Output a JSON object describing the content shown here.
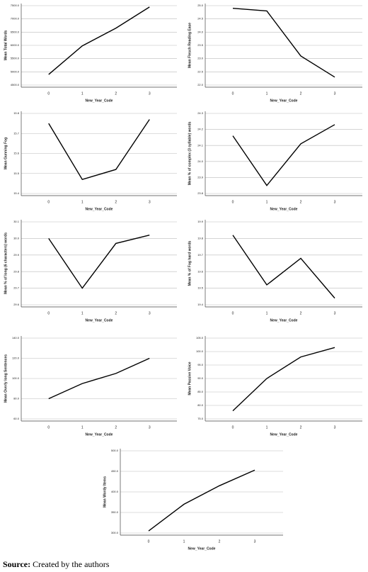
{
  "chart_data": [
    {
      "type": "line",
      "y_label": "Mean Total Words",
      "x_label": "New_Year_Code",
      "categories": [
        "0",
        "1",
        "2",
        "3"
      ],
      "values": [
        4900,
        5980,
        6650,
        7450
      ],
      "ylim": [
        4500,
        7500
      ],
      "yticks": [
        {
          "value": 4500,
          "label": "4500.0"
        },
        {
          "value": 5000,
          "label": "5000.0"
        },
        {
          "value": 5500,
          "label": "5500.0"
        },
        {
          "value": 6000,
          "label": "6000.0"
        },
        {
          "value": 6500,
          "label": "6500.0"
        },
        {
          "value": 7000,
          "label": "7000.0"
        },
        {
          "value": 7500,
          "label": "7500.0"
        }
      ],
      "color": "#000000"
    },
    {
      "type": "line",
      "y_label": "Mean Flesch Reading Ease",
      "x_label": "New_Year_Code",
      "categories": [
        "0",
        "1",
        "2",
        "3"
      ],
      "values": [
        24.9,
        24.8,
        23.1,
        22.3
      ],
      "ylim": [
        22,
        25
      ],
      "yticks": [
        {
          "value": 22,
          "label": "22.0"
        },
        22.5,
        {
          "value": 23,
          "label": "23.0"
        },
        23.5,
        {
          "value": 24,
          "label": "24.0"
        },
        24.5,
        {
          "value": 25,
          "label": "25.0"
        }
      ],
      "color": "#000000"
    },
    {
      "type": "line",
      "y_label": "Mean Gunning Fog",
      "x_label": "New_Year_Code",
      "categories": [
        "0",
        "1",
        "2",
        "3"
      ],
      "values": [
        15.75,
        15.47,
        15.52,
        15.77
      ],
      "ylim": [
        15.4,
        15.8
      ],
      "yticks": [
        15.4,
        15.5,
        15.6,
        15.7,
        15.8
      ],
      "color": "#000000"
    },
    {
      "type": "line",
      "y_label": "Mean % of complex (3 syllable) words",
      "x_label": "New_Year_Code",
      "categories": [
        "0",
        "1",
        "2",
        "3"
      ],
      "values": [
        24.16,
        23.85,
        24.11,
        24.23
      ],
      "ylim": [
        23.8,
        24.3
      ],
      "yticks": [
        23.8,
        23.9,
        {
          "value": 24,
          "label": "24.0"
        },
        24.1,
        24.2,
        24.3
      ],
      "color": "#000000"
    },
    {
      "type": "line",
      "y_label": "Mean % of long (6 characters) words",
      "x_label": "New_Year_Code",
      "categories": [
        "0",
        "1",
        "2",
        "3"
      ],
      "values": [
        30.0,
        29.7,
        29.97,
        30.02
      ],
      "ylim": [
        29.6,
        30.1
      ],
      "yticks": [
        29.6,
        29.7,
        29.8,
        29.9,
        {
          "value": 30,
          "label": "30.0"
        },
        30.1
      ],
      "color": "#000000"
    },
    {
      "type": "line",
      "y_label": "Mean % of Fog hard words",
      "x_label": "New_Year_Code",
      "categories": [
        "0",
        "1",
        "2",
        "3"
      ],
      "values": [
        19.82,
        19.52,
        19.68,
        19.44
      ],
      "ylim": [
        19.4,
        19.9
      ],
      "yticks": [
        19.4,
        19.5,
        19.6,
        19.7,
        19.8,
        19.9
      ],
      "color": "#000000"
    },
    {
      "type": "line",
      "y_label": "Mean Overly long Sentences",
      "x_label": "New_Year_Code",
      "categories": [
        "0",
        "1",
        "2",
        "3"
      ],
      "values": [
        80,
        95,
        105,
        120
      ],
      "ylim": [
        60,
        140
      ],
      "yticks": [
        {
          "value": 60,
          "label": "60.0"
        },
        {
          "value": 80,
          "label": "80.0"
        },
        {
          "value": 100,
          "label": "100.0"
        },
        {
          "value": 120,
          "label": "120.0"
        },
        {
          "value": 140,
          "label": "140.0"
        }
      ],
      "color": "#000000"
    },
    {
      "type": "line",
      "y_label": "Mean Passive Voice",
      "x_label": "New_Year_Code",
      "categories": [
        "0",
        "1",
        "2",
        "3"
      ],
      "values": [
        78,
        90,
        98,
        101.5
      ],
      "ylim": [
        75,
        105
      ],
      "yticks": [
        {
          "value": 75,
          "label": "75.0"
        },
        {
          "value": 80,
          "label": "80.0"
        },
        {
          "value": 85,
          "label": "85.0"
        },
        {
          "value": 90,
          "label": "90.0"
        },
        {
          "value": 95,
          "label": "95.0"
        },
        {
          "value": 100,
          "label": "100.0"
        },
        {
          "value": 105,
          "label": "105.0"
        }
      ],
      "color": "#000000"
    },
    {
      "type": "line",
      "y_label": "Mean Wordy Items",
      "x_label": "New_Year_Code",
      "categories": [
        "0",
        "1",
        "2",
        "3"
      ],
      "values": [
        305,
        370,
        415,
        453
      ],
      "ylim": [
        300,
        500
      ],
      "yticks": [
        {
          "value": 300,
          "label": "300.0"
        },
        {
          "value": 350,
          "label": "350.0"
        },
        {
          "value": 400,
          "label": "400.0"
        },
        {
          "value": 450,
          "label": "450.0"
        },
        {
          "value": 500,
          "label": "500.0"
        }
      ],
      "color": "#000000"
    }
  ],
  "source": {
    "label": "Source:",
    "text": "Created by the authors"
  }
}
